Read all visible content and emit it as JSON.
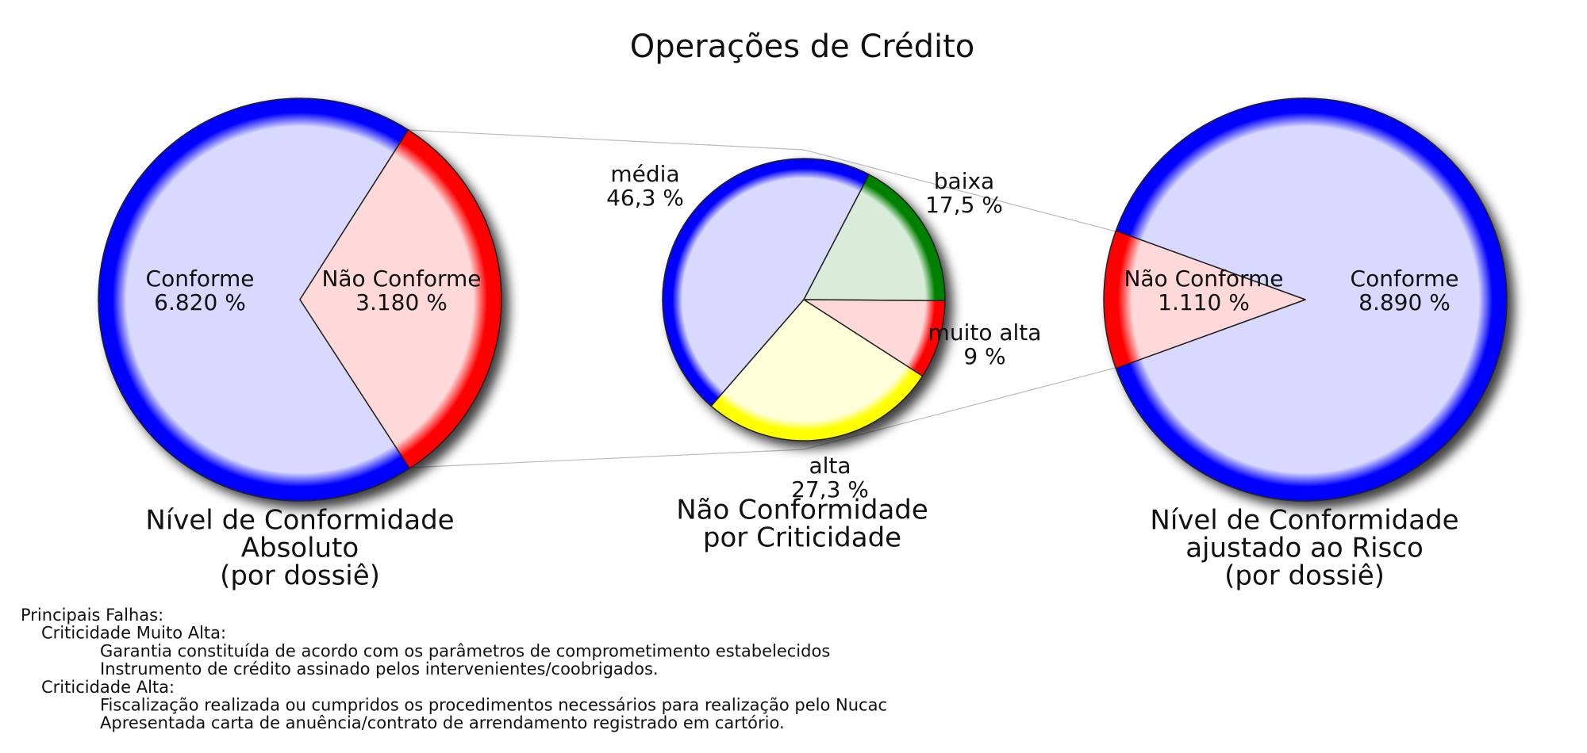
{
  "title": "Operações de Crédito",
  "chart_data": [
    {
      "type": "pie",
      "title": [
        "Nível de Conformidade",
        "Absoluto",
        "(por dossiê)"
      ],
      "categories": [
        "Conforme",
        "Não Conforme"
      ],
      "values": [
        6.82,
        3.18
      ],
      "value_labels": [
        "6.820 %",
        "3.180 %"
      ],
      "colors": [
        "#0000ff",
        "#ff0000"
      ]
    },
    {
      "type": "pie",
      "title": [
        "Não Conformidade",
        "por Criticidade"
      ],
      "categories": [
        "média",
        "baixa",
        "muito alta",
        "alta"
      ],
      "values": [
        46.3,
        17.5,
        9,
        27.3
      ],
      "value_labels": [
        "46,3 %",
        "17,5 %",
        "9 %",
        "27,3 %"
      ],
      "colors": [
        "#0000ff",
        "#008000",
        "#ff0000",
        "#ffff00"
      ]
    },
    {
      "type": "pie",
      "title": [
        "Nível de Conformidade",
        "ajustado ao Risco",
        "(por dossiê)"
      ],
      "categories": [
        "Conforme",
        "Não Conforme"
      ],
      "values": [
        8.89,
        1.11
      ],
      "value_labels": [
        "8.890 %",
        "1.110 %"
      ],
      "colors": [
        "#0000ff",
        "#ff0000"
      ]
    }
  ],
  "notes": {
    "heading": "Principais Falhas:",
    "groups": [
      {
        "title": "Criticidade Muito Alta:",
        "items": [
          "Garantia constituída de acordo com os parâmetros de comprometimento estabelecidos",
          "Instrumento de crédito assinado pelos intervenientes/coobrigados."
        ]
      },
      {
        "title": "Criticidade Alta:",
        "items": [
          "Fiscalização realizada ou cumpridos os procedimentos necessários para realização pelo Nucac",
          "Apresentada carta de anuência/contrato de arrendamento registrado em cartório."
        ]
      }
    ]
  }
}
